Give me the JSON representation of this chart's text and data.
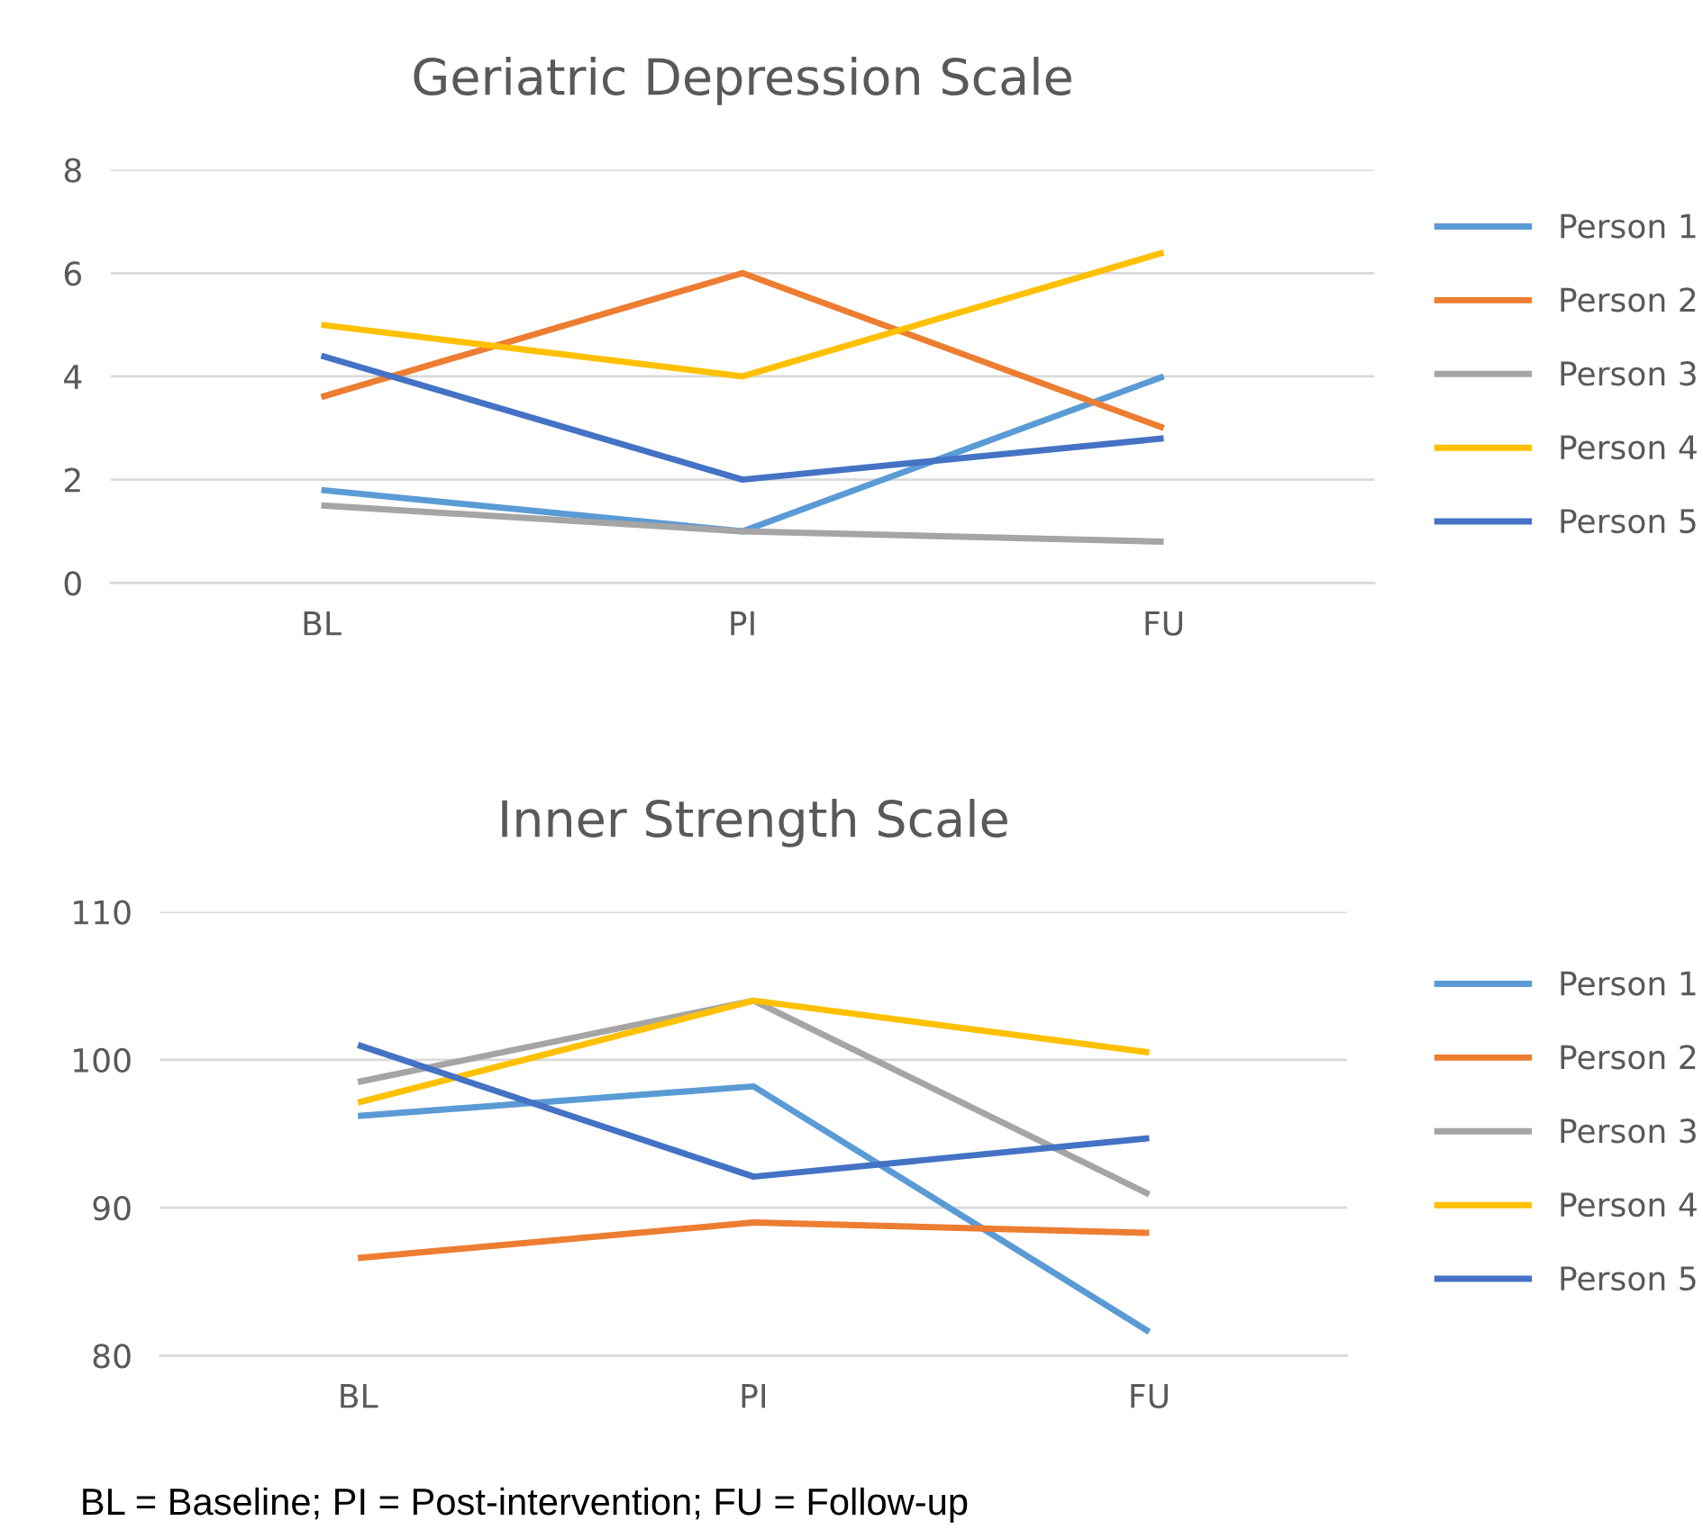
{
  "chart_data": [
    {
      "type": "line",
      "title": "Geriatric Depression Scale",
      "categories": [
        "BL",
        "PI",
        "FU"
      ],
      "ylim": [
        0,
        8
      ],
      "yticks": [
        0,
        2,
        4,
        6,
        8
      ],
      "grid": "y",
      "legend": "right",
      "series": [
        {
          "name": "Person 1",
          "color": "#5b9bd5",
          "values": [
            1.8,
            1.0,
            4.0
          ]
        },
        {
          "name": "Person 2",
          "color": "#ed7d31",
          "values": [
            3.6,
            6.0,
            3.0
          ]
        },
        {
          "name": "Person 3",
          "color": "#a5a5a5",
          "values": [
            1.5,
            1.0,
            0.8
          ]
        },
        {
          "name": "Person 4",
          "color": "#ffc000",
          "values": [
            5.0,
            4.0,
            6.4
          ]
        },
        {
          "name": "Person 5",
          "color": "#4472c4",
          "values": [
            4.4,
            2.0,
            2.8
          ]
        }
      ]
    },
    {
      "type": "line",
      "title": "Inner Strength Scale",
      "categories": [
        "BL",
        "PI",
        "FU"
      ],
      "ylim": [
        80,
        110
      ],
      "yticks": [
        80,
        90,
        100,
        110
      ],
      "grid": "y",
      "legend": "right",
      "annotations": [
        "BL = Baseline; PI = Post-intervention; FU = Follow-up"
      ],
      "series": [
        {
          "name": "Person 1",
          "color": "#5b9bd5",
          "values": [
            96.2,
            98.2,
            81.6
          ]
        },
        {
          "name": "Person 2",
          "color": "#ed7d31",
          "values": [
            86.6,
            89.0,
            88.3
          ]
        },
        {
          "name": "Person 3",
          "color": "#a5a5a5",
          "values": [
            98.5,
            104.0,
            90.9
          ]
        },
        {
          "name": "Person 4",
          "color": "#ffc000",
          "values": [
            97.1,
            104.0,
            100.5
          ]
        },
        {
          "name": "Person 5",
          "color": "#4472c4",
          "values": [
            101.0,
            92.1,
            94.7
          ]
        }
      ]
    }
  ]
}
